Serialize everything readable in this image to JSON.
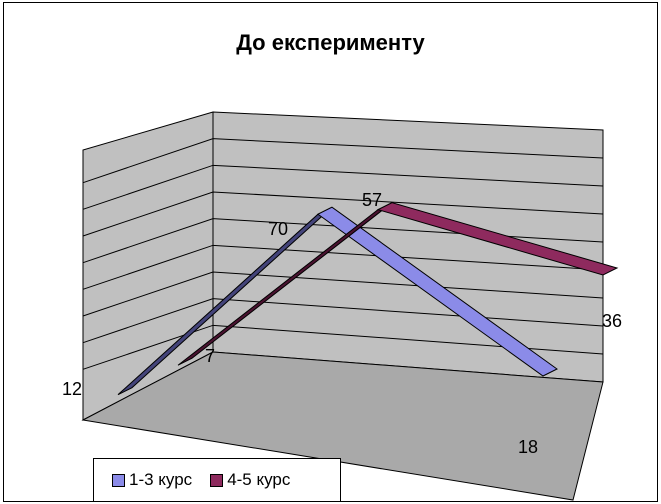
{
  "chart_data": {
    "type": "line",
    "title": "До експерименту",
    "categories": [
      "",
      "",
      ""
    ],
    "series": [
      {
        "name": "1-3 курс",
        "values": [
          12,
          70,
          18
        ],
        "color": "#8B8BE8",
        "dark_color": "#44447A"
      },
      {
        "name": "4-5 курс",
        "values": [
          7,
          57,
          36
        ],
        "color": "#8E2A5E",
        "dark_color": "#4A1230"
      }
    ],
    "ylim": [
      0,
      90
    ],
    "grid": true,
    "legend": "bottom-left",
    "style": "3d"
  },
  "colors": {
    "wall": "#C0C0C0",
    "floor": "#A9A9A9"
  }
}
